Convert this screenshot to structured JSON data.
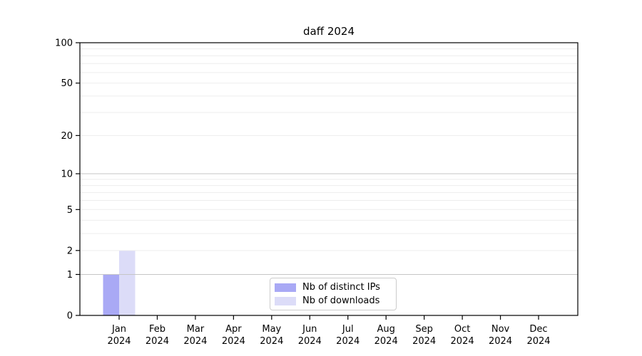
{
  "figure": {
    "background": "#ffffff"
  },
  "chart_data": {
    "type": "bar",
    "title": "daff 2024",
    "categories": [
      "Jan",
      "Feb",
      "Mar",
      "Apr",
      "May",
      "Jun",
      "Jul",
      "Aug",
      "Sep",
      "Oct",
      "Nov",
      "Dec"
    ],
    "year": "2024",
    "series": [
      {
        "name": "Nb of distinct IPs",
        "color": "#a9a9f5",
        "values": [
          1,
          0,
          0,
          0,
          0,
          0,
          0,
          0,
          0,
          0,
          0,
          0
        ]
      },
      {
        "name": "Nb of downloads",
        "color": "#dcdcf8",
        "values": [
          2,
          0,
          0,
          0,
          0,
          0,
          0,
          0,
          0,
          0,
          0,
          0
        ]
      }
    ],
    "xlabel": "",
    "ylabel": "",
    "yscale": "log1p",
    "ylim": [
      0,
      100
    ],
    "y_ticks": [
      0,
      1,
      2,
      5,
      10,
      20,
      50,
      100
    ],
    "y_major_gridlines": [
      1,
      10,
      100
    ],
    "y_minor_gridlines": [
      2,
      3,
      4,
      5,
      6,
      7,
      8,
      9,
      20,
      30,
      40,
      50,
      60,
      70,
      80,
      90
    ],
    "grid": "both",
    "legend_position": "lower center",
    "colors": {
      "major_grid": "#c6c6c6",
      "minor_grid": "#ededed",
      "spine": "#000000",
      "text": "#000000",
      "background": "#ffffff"
    }
  }
}
